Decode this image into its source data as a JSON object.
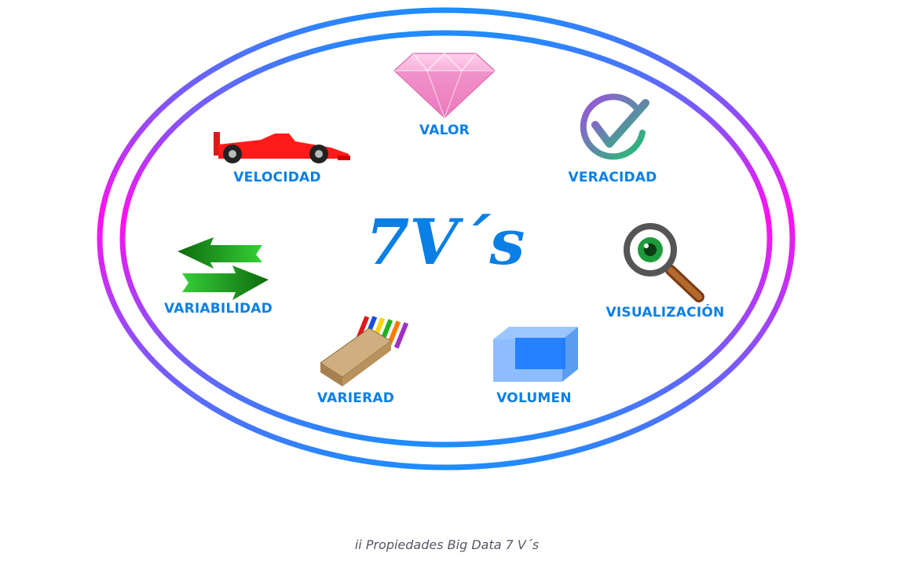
{
  "diagram": {
    "title": "7V´s",
    "caption": "ii Propiedades Big Data 7 V´s",
    "colors": {
      "label": "#0a7fe6",
      "title": "#0a7fe6",
      "caption": "#555566",
      "ring_gradient": [
        "#1f8cff",
        "#ff10f0"
      ]
    },
    "items": [
      {
        "id": "valor",
        "label": "VALOR",
        "icon": "diamond-icon"
      },
      {
        "id": "velocidad",
        "label": "VELOCIDAD",
        "icon": "race-car-icon"
      },
      {
        "id": "veracidad",
        "label": "VERACIDAD",
        "icon": "checkmark-icon"
      },
      {
        "id": "variabilidad",
        "label": "VARIABILIDAD",
        "icon": "arrows-exchange-icon"
      },
      {
        "id": "visualizacion",
        "label": "VISUALIZACIÓN",
        "icon": "magnifier-eye-icon"
      },
      {
        "id": "varierad",
        "label": "VARIERAD",
        "icon": "colored-pencils-icon"
      },
      {
        "id": "volumen",
        "label": "VOLUMEN",
        "icon": "cube-icon"
      }
    ]
  }
}
